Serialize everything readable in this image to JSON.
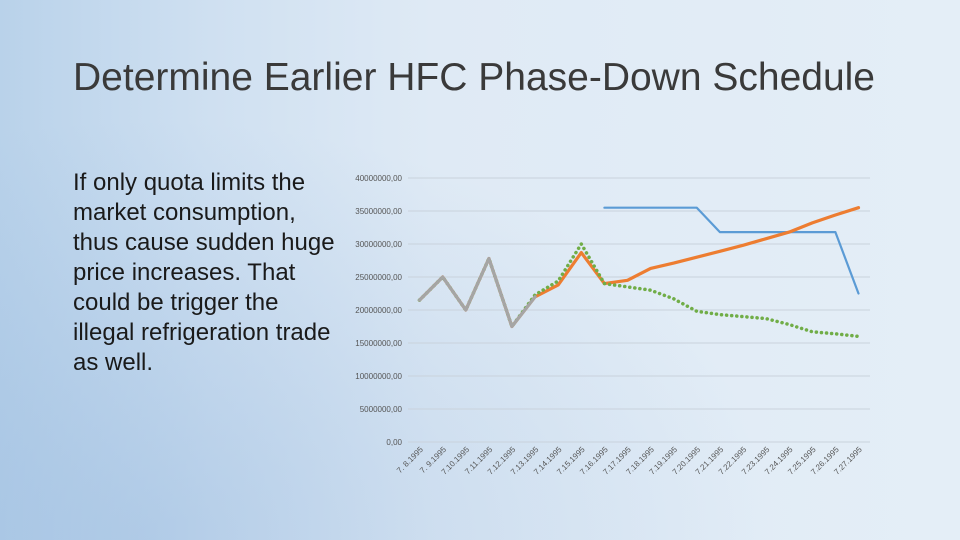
{
  "slide": {
    "title": "Determine Earlier HFC Phase-Down Schedule",
    "body": "If only quota limits the market consumption, thus cause sudden huge price increases. That could be trigger the illegal refrigeration trade as well."
  },
  "chart_data": {
    "type": "line",
    "title": "",
    "xlabel": "",
    "ylabel": "",
    "ylim": [
      0,
      40000000
    ],
    "yticks": [
      0,
      5000000,
      10000000,
      15000000,
      20000000,
      25000000,
      30000000,
      35000000,
      40000000
    ],
    "ytick_labels": [
      "0,00",
      "5000000,00",
      "10000000,00",
      "15000000,00",
      "20000000,00",
      "25000000,00",
      "30000000,00",
      "35000000,00",
      "40000000,00"
    ],
    "grid": true,
    "legend": "none",
    "categories": [
      "7. 8.1995",
      "7. 9.1995",
      "7.10.1995",
      "7.11.1995",
      "7.12.1995",
      "7.13.1995",
      "7.14.1995",
      "7.15.1995",
      "7.16.1995",
      "7.17.1995",
      "7.18.1995",
      "7.19.1995",
      "7.20.1995",
      "7.21.1995",
      "7.22.1995",
      "7.23.1995",
      "7.24.1995",
      "7.25.1995",
      "7.26.1995",
      "7.27.1995"
    ],
    "series": [
      {
        "color": "#5b9bd5",
        "style": "solid",
        "values": [
          null,
          null,
          null,
          null,
          null,
          null,
          null,
          null,
          35500000,
          35500000,
          35500000,
          35500000,
          35500000,
          31800000,
          31800000,
          31800000,
          31800000,
          31800000,
          31800000,
          22500000
        ]
      },
      {
        "color": "#ed7d31",
        "style": "solid",
        "values": [
          21500000,
          25000000,
          20000000,
          27800000,
          17500000,
          22000000,
          23800000,
          28700000,
          24000000,
          24500000,
          26300000,
          27100000,
          28000000,
          28900000,
          29800000,
          30800000,
          31800000,
          33200000,
          34400000,
          35500000
        ]
      },
      {
        "color": "#70ad47",
        "style": "dotted",
        "values": [
          21500000,
          25000000,
          20000000,
          27800000,
          17500000,
          22300000,
          24400000,
          30000000,
          24000000,
          23500000,
          23000000,
          21700000,
          19800000,
          19300000,
          19000000,
          18700000,
          17800000,
          16700000,
          16400000,
          16000000
        ]
      },
      {
        "color": "#a5a5a5",
        "style": "solid",
        "values": [
          21500000,
          25000000,
          20000000,
          27800000,
          17500000,
          22000000,
          null,
          null,
          null,
          null,
          null,
          null,
          null,
          null,
          null,
          null,
          null,
          null,
          null,
          null
        ]
      }
    ]
  }
}
